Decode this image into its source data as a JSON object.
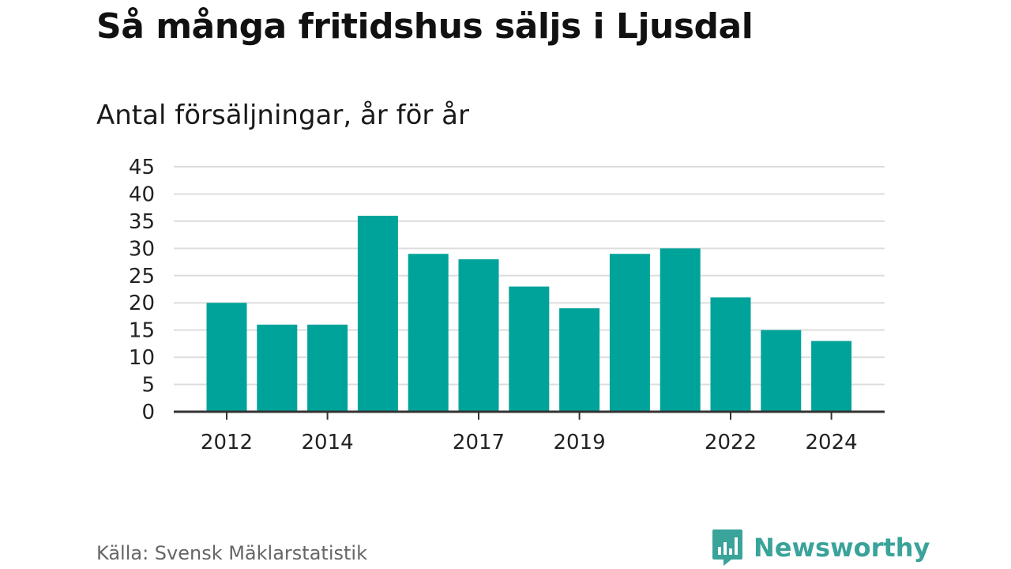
{
  "title": "Så många fritidshus säljs i Ljusdal",
  "subtitle": "Antal försäljningar, år för år",
  "source": "Källa: Svensk Mäklarstatistik",
  "brand": {
    "name": "Newsworthy",
    "color": "#3aa39a"
  },
  "chart_data": {
    "type": "bar",
    "categories": [
      "2012",
      "2013",
      "2014",
      "2015",
      "2016",
      "2017",
      "2018",
      "2019",
      "2020",
      "2021",
      "2022",
      "2023",
      "2024"
    ],
    "values": [
      20,
      16,
      16,
      36,
      29,
      28,
      23,
      19,
      29,
      30,
      21,
      15,
      13
    ],
    "x_tick_labels": [
      "2012",
      "2014",
      "2017",
      "2019",
      "2022",
      "2024"
    ],
    "y_ticks": [
      0,
      5,
      10,
      15,
      20,
      25,
      30,
      35,
      40,
      45
    ],
    "ylim": [
      0,
      45
    ],
    "grid": true,
    "bar_color": "#00a39a",
    "title": "Så många fritidshus säljs i Ljusdal",
    "subtitle": "Antal försäljningar, år för år",
    "xlabel": "",
    "ylabel": ""
  }
}
